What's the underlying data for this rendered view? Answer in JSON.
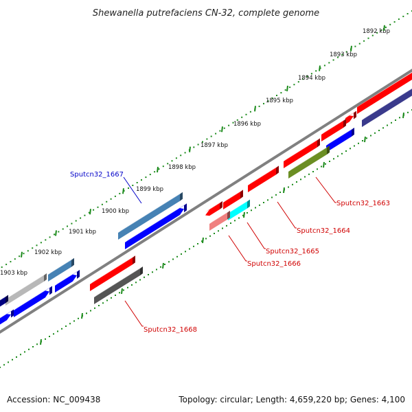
{
  "title": "Shewanella putrefaciens CN-32, complete genome",
  "ticks": [
    "1892 kbp",
    "1893 kbp",
    "1894 kbp",
    "1895 kbp",
    "1896 kbp",
    "1897 kbp",
    "1898 kbp",
    "1899 kbp",
    "1900 kbp",
    "1901 kbp",
    "1902 kbp",
    "1903 kbp"
  ],
  "genes": [
    {
      "label": "Sputcn32_1663",
      "color": "#d00000"
    },
    {
      "label": "Sputcn32_1664",
      "color": "#d00000"
    },
    {
      "label": "Sputcn32_1665",
      "color": "#d00000"
    },
    {
      "label": "Sputcn32_1666",
      "color": "#d00000"
    },
    {
      "label": "Sputcn32_1667",
      "color": "#0000c8"
    },
    {
      "label": "Sputcn32_1668",
      "color": "#d00000"
    }
  ],
  "footer": {
    "accession": "Accession: NC_009438",
    "summary": "Topology: circular; Length: 4,659,220 bp; Genes: 4,100"
  },
  "colors": {
    "dots": "#1a8a1a",
    "backbone": "#808080",
    "red": "#ff0000",
    "blue": "#0000ff",
    "steelblue": "#4682b4",
    "navy": "#3a3a8c",
    "olive": "#6b8e23",
    "cyan": "#00ffff",
    "pink": "#f08080",
    "gray": "#555555",
    "silver": "#b8b8b8",
    "darknavy": "#000080"
  }
}
